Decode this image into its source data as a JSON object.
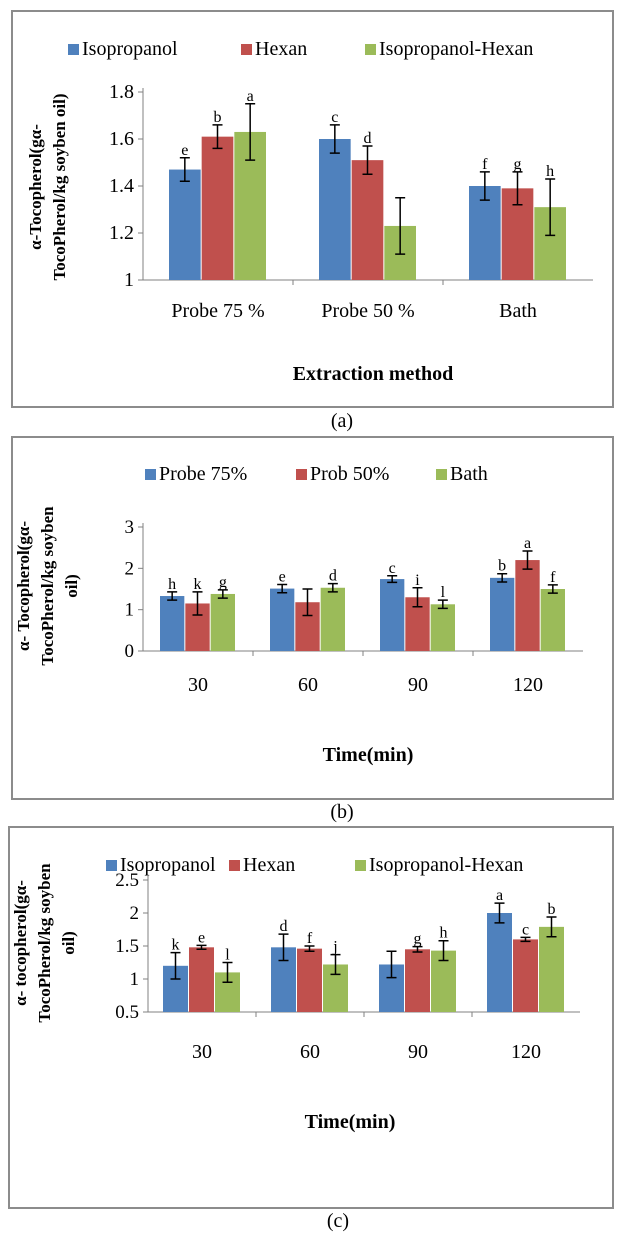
{
  "colors": {
    "series": [
      "#4f81bd",
      "#c0504d",
      "#9bbb59"
    ],
    "axis": "#808080",
    "error_bar": "#000000"
  },
  "chart_data": [
    {
      "type": "bar",
      "caption": "(a)",
      "xlabel": "Extraction method",
      "ylabel_lines": [
        "α-Tocopherol(gα-",
        "TocoPherol/kg soyben oil)"
      ],
      "categories": [
        "Probe 75 %",
        "Probe 50 %",
        "Bath"
      ],
      "series": [
        {
          "name": "Isopropanol",
          "values": [
            1.47,
            1.6,
            1.4
          ],
          "errors": [
            0.05,
            0.06,
            0.06
          ],
          "letters": [
            "e",
            "c",
            "f"
          ]
        },
        {
          "name": "Hexan",
          "values": [
            1.61,
            1.51,
            1.39
          ],
          "errors": [
            0.05,
            0.06,
            0.07
          ],
          "letters": [
            "b",
            "d",
            "g"
          ]
        },
        {
          "name": "Isopropanol-Hexan",
          "values": [
            1.63,
            1.23,
            1.31
          ],
          "errors": [
            0.12,
            0.12,
            0.12
          ],
          "letters": [
            "a",
            "",
            "h"
          ]
        }
      ],
      "ylim": [
        1,
        1.8
      ],
      "yticks": [
        "1",
        "1.2",
        "1.4",
        "1.6",
        "1.8"
      ],
      "legend_position": "top",
      "grid": false
    },
    {
      "type": "bar",
      "caption": "(b)",
      "xlabel": "Time(min)",
      "ylabel_lines": [
        "α- Tocopherol(gα-",
        "TocoPherol/kg soyben",
        "oil)"
      ],
      "categories": [
        "30",
        "60",
        "90",
        "120"
      ],
      "series": [
        {
          "name": "Probe 75%",
          "values": [
            1.33,
            1.51,
            1.74,
            1.77
          ],
          "errors": [
            0.1,
            0.1,
            0.08,
            0.1
          ],
          "letters": [
            "h",
            "e",
            "c",
            "b"
          ]
        },
        {
          "name": "Prob 50%",
          "values": [
            1.15,
            1.18,
            1.3,
            2.2
          ],
          "errors": [
            0.28,
            0.32,
            0.23,
            0.22
          ],
          "letters": [
            "k",
            "",
            "i",
            "a"
          ]
        },
        {
          "name": "Bath",
          "values": [
            1.38,
            1.53,
            1.13,
            1.5
          ],
          "errors": [
            0.1,
            0.1,
            0.1,
            0.1
          ],
          "letters": [
            "g",
            "d",
            "l",
            "f"
          ]
        }
      ],
      "ylim": [
        0,
        3
      ],
      "yticks": [
        "0",
        "1",
        "2",
        "3"
      ],
      "legend_position": "top",
      "grid": false
    },
    {
      "type": "bar",
      "caption": "(c)",
      "xlabel": "Time(min)",
      "ylabel_lines": [
        "α- tocopherol(gα-",
        "TocoPherol/kg soyben",
        "oil)"
      ],
      "categories": [
        "30",
        "60",
        "90",
        "120"
      ],
      "series": [
        {
          "name": "Isopropanol",
          "values": [
            1.2,
            1.48,
            1.22,
            2.0
          ],
          "errors": [
            0.2,
            0.2,
            0.2,
            0.15
          ],
          "letters": [
            "k",
            "d",
            "",
            "a"
          ]
        },
        {
          "name": "Hexan",
          "values": [
            1.48,
            1.46,
            1.45,
            1.6
          ],
          "errors": [
            0.03,
            0.04,
            0.04,
            0.03
          ],
          "letters": [
            "e",
            "f",
            "g",
            "c"
          ]
        },
        {
          "name": "Isopropanol-Hexan",
          "values": [
            1.1,
            1.22,
            1.43,
            1.79
          ],
          "errors": [
            0.15,
            0.15,
            0.15,
            0.15
          ],
          "letters": [
            "l",
            "j",
            "h",
            "b"
          ]
        }
      ],
      "ylim": [
        0.5,
        2.5
      ],
      "yticks": [
        "0.5",
        "1",
        "1.5",
        "2",
        "2.5"
      ],
      "legend_position": "top",
      "grid": false
    }
  ]
}
